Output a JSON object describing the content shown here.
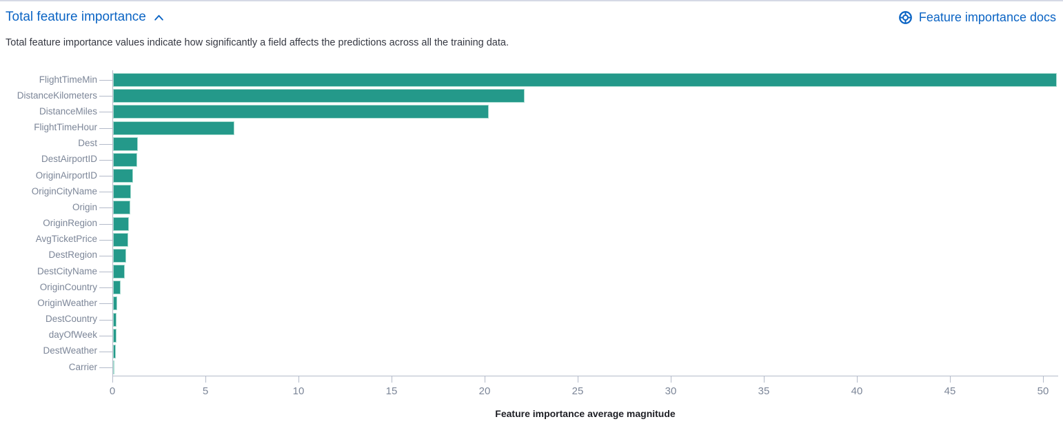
{
  "header": {
    "title": "Total feature importance",
    "collapse_icon": "chevron-up-icon",
    "docs_link_label": "Feature importance docs",
    "docs_icon": "help-life-ring-icon"
  },
  "description": "Total feature importance values indicate how significantly a field affects the predictions across all the training data.",
  "colors": {
    "link_blue": "#0b64c4",
    "bar_teal": "#24998a",
    "bar_border": "#a9dcd0",
    "axis_gray": "#b3bac9",
    "tick_label_gray": "#7c8698",
    "body_text": "#343741"
  },
  "chart_data": {
    "type": "bar",
    "orientation": "horizontal",
    "title": "",
    "xlabel": "Feature importance average magnitude",
    "ylabel": "",
    "grid": false,
    "legend": "none",
    "categories": [
      "FlightTimeMin",
      "DistanceKilometers",
      "DistanceMiles",
      "FlightTimeHour",
      "Dest",
      "DestAirportID",
      "OriginAirportID",
      "OriginCityName",
      "Origin",
      "OriginRegion",
      "AvgTicketPrice",
      "DestRegion",
      "DestCityName",
      "OriginCountry",
      "OriginWeather",
      "DestCountry",
      "dayOfWeek",
      "DestWeather",
      "Carrier"
    ],
    "values": [
      50.7,
      22.1,
      20.2,
      6.5,
      1.33,
      1.3,
      1.07,
      0.97,
      0.93,
      0.87,
      0.82,
      0.72,
      0.62,
      0.42,
      0.22,
      0.2,
      0.18,
      0.15,
      0.05
    ],
    "x_ticks": [
      0,
      5,
      10,
      15,
      20,
      25,
      30,
      35,
      40,
      45,
      50
    ],
    "xlim": [
      0,
      50.8
    ]
  }
}
